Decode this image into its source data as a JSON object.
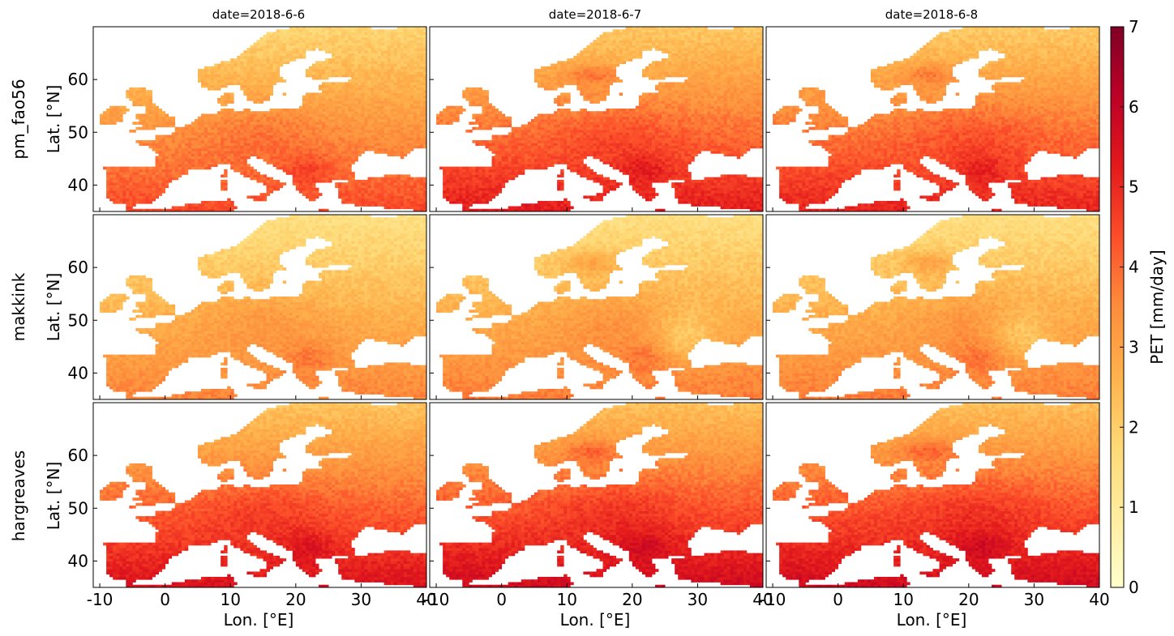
{
  "chart_data": {
    "type": "heatmap",
    "subtype": "faceted-map-grid",
    "columns": [
      "date=2018-6-6",
      "date=2018-6-7",
      "date=2018-6-8"
    ],
    "rows": [
      "pm_fao56",
      "makkink",
      "hargreaves"
    ],
    "xlabel": "Lon. [°E]",
    "ylabel": "Lat. [°N]",
    "xlim": [
      -11,
      40
    ],
    "ylim": [
      35,
      70
    ],
    "xticks": [
      -10,
      0,
      10,
      20,
      30,
      40
    ],
    "yticks": [
      40,
      50,
      60
    ],
    "colorbar": {
      "label": "PET [mm/day]",
      "min": 0,
      "max": 7,
      "ticks": [
        0,
        1,
        2,
        3,
        4,
        5,
        6,
        7
      ],
      "colormap": "YlOrRd",
      "colors": [
        "#ffffcc",
        "#ffeda0",
        "#fed976",
        "#feb24c",
        "#fd8d3c",
        "#fc4e2a",
        "#e31a1c",
        "#bd0026",
        "#800026"
      ]
    },
    "panel_levels": [
      [
        3.6,
        4.2,
        4.1
      ],
      [
        2.9,
        3.0,
        3.0
      ],
      [
        4.4,
        4.6,
        4.6
      ]
    ]
  }
}
